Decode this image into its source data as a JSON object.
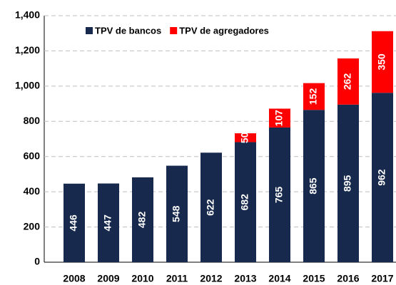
{
  "chart_data": {
    "type": "stacked-bar",
    "categories": [
      "2008",
      "2009",
      "2010",
      "2011",
      "2012",
      "2013",
      "2014",
      "2015",
      "2016",
      "2017"
    ],
    "series": [
      {
        "name": "TPV de bancos",
        "color": "#17294d",
        "values": [
          446,
          447,
          482,
          548,
          622,
          682,
          765,
          865,
          895,
          962
        ]
      },
      {
        "name": "TPV de agregadores",
        "color": "#ff0000",
        "values": [
          null,
          null,
          null,
          null,
          null,
          50,
          107,
          152,
          262,
          350
        ]
      }
    ],
    "ylim": [
      0,
      1400
    ],
    "yticks": [
      0,
      200,
      400,
      600,
      800,
      {
        "value": 1000,
        "label": "1,000"
      },
      {
        "value": 1200,
        "label": "1,200"
      },
      {
        "value": 1400,
        "label": "1,400"
      }
    ],
    "grid": true,
    "legend": "top-left"
  }
}
